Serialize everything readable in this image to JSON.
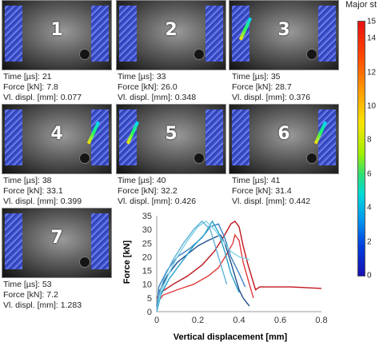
{
  "legend": {
    "title": "Major st",
    "ticks": [
      "15",
      "14",
      "12",
      "10",
      "8",
      "6",
      "4",
      "2",
      "0"
    ]
  },
  "frames": [
    {
      "num": "1",
      "time": "Time [µs]: 21",
      "force": "Force [kN]: 7.8",
      "displ": "Vl. displ. [mm]: 0.077"
    },
    {
      "num": "2",
      "time": "Time [µs]: 33",
      "force": "Force [kN]: 26.0",
      "displ": "Vl. displ. [mm]: 0.348"
    },
    {
      "num": "3",
      "time": "Time [µs]: 35",
      "force": "Force [kN]: 28.7",
      "displ": "Vl. displ. [mm]: 0.376"
    },
    {
      "num": "4",
      "time": "Time [µs]: 38",
      "force": "Force [kN]: 33.1",
      "displ": "Vl. displ. [mm]: 0.399"
    },
    {
      "num": "5",
      "time": "Time [µs]: 40",
      "force": "Force [kN]: 32.2",
      "displ": "Vl. displ. [mm]: 0.426"
    },
    {
      "num": "6",
      "time": "Time [µs]: 41",
      "force": "Force [kN]: 31.4",
      "displ": "Vl. displ. [mm]: 0.442"
    },
    {
      "num": "7",
      "time": "Time [µs]: 53",
      "force": "Force [kN]: 7.2",
      "displ": "Vl. displ. [mm]: 1.283"
    }
  ],
  "chart_data": {
    "type": "line",
    "xlabel": "Vertical displacement [mm]",
    "ylabel": "Force [kN]",
    "xlim": [
      0,
      0.8
    ],
    "ylim": [
      0,
      35
    ],
    "xticks": [
      "0",
      "0.2",
      "0.4",
      "0.6",
      "0.8"
    ],
    "yticks": [
      "0",
      "5",
      "10",
      "15",
      "20",
      "25",
      "30",
      "35"
    ],
    "grid": false,
    "series": [
      {
        "color": "#c0141c",
        "x": [
          0,
          0.02,
          0.08,
          0.15,
          0.22,
          0.28,
          0.33,
          0.36,
          0.38,
          0.4,
          0.42,
          0.44,
          0.46,
          0.48,
          0.5,
          0.55,
          0.65,
          0.8
        ],
        "y": [
          5,
          7,
          10,
          13,
          17,
          22,
          28,
          32,
          33,
          31,
          24,
          18,
          13,
          8,
          9,
          9,
          9,
          8.5
        ]
      },
      {
        "color": "#e23a3a",
        "x": [
          0,
          0.03,
          0.1,
          0.18,
          0.25,
          0.3,
          0.34,
          0.37,
          0.38,
          0.4,
          0.42,
          0.45,
          0.47
        ],
        "y": [
          3,
          6,
          8,
          10,
          13,
          16,
          21,
          25,
          28,
          26,
          18,
          10,
          5
        ]
      },
      {
        "color": "#1f4e8c",
        "x": [
          0,
          0.01,
          0.05,
          0.1,
          0.15,
          0.2,
          0.25,
          0.28,
          0.31,
          0.33,
          0.36,
          0.38,
          0.4,
          0.42,
          0.45
        ],
        "y": [
          2,
          7,
          13,
          18,
          21,
          24,
          26,
          27,
          28,
          25,
          18,
          13,
          8,
          5,
          2
        ]
      },
      {
        "color": "#3a7fbf",
        "x": [
          0,
          0.01,
          0.05,
          0.1,
          0.16,
          0.22,
          0.26,
          0.3,
          0.33,
          0.36,
          0.4,
          0.43
        ],
        "y": [
          1,
          9,
          15,
          20,
          23,
          27,
          31,
          32,
          27,
          20,
          14,
          9
        ]
      },
      {
        "color": "#27a2c9",
        "x": [
          0,
          0.02,
          0.06,
          0.12,
          0.18,
          0.23,
          0.27,
          0.3,
          0.33,
          0.36,
          0.4
        ],
        "y": [
          0,
          6,
          12,
          18,
          24,
          28,
          33,
          29,
          22,
          14,
          7
        ]
      },
      {
        "color": "#7fd3e6",
        "x": [
          0,
          0.02,
          0.06,
          0.1,
          0.15,
          0.2,
          0.24,
          0.28,
          0.32,
          0.36,
          0.4,
          0.45
        ],
        "y": [
          1,
          7,
          14,
          20,
          26,
          31,
          33,
          30,
          26,
          22,
          20,
          19
        ]
      },
      {
        "color": "#5fb0d6",
        "x": [
          0,
          0.01,
          0.04,
          0.08,
          0.13,
          0.18,
          0.22,
          0.26,
          0.3,
          0.34
        ],
        "y": [
          0,
          6,
          13,
          19,
          25,
          30,
          33,
          30,
          20,
          10
        ]
      }
    ]
  }
}
